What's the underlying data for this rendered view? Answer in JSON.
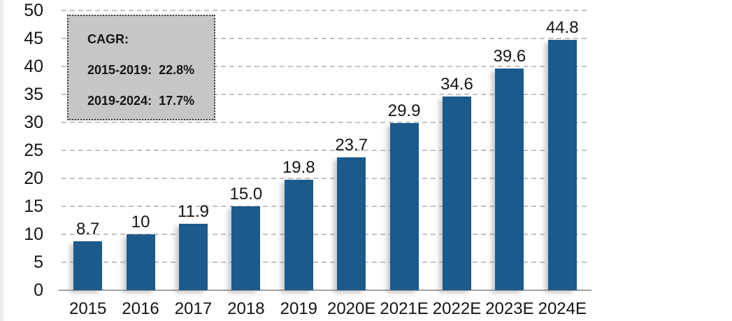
{
  "chart_data": {
    "type": "bar",
    "title": "",
    "categories": [
      "2015",
      "2016",
      "2017",
      "2018",
      "2019",
      "2020E",
      "2021E",
      "2022E",
      "2023E",
      "2024E"
    ],
    "values": [
      8.7,
      10,
      11.9,
      15.0,
      19.8,
      23.7,
      29.9,
      34.6,
      39.6,
      44.8
    ],
    "value_labels": [
      "8.7",
      "10",
      "11.9",
      "15.0",
      "19.8",
      "23.7",
      "29.9",
      "34.6",
      "39.6",
      "44.8"
    ],
    "xlabel": "",
    "ylabel": "",
    "ylim": [
      0,
      50
    ],
    "yticks": [
      0,
      5,
      10,
      15,
      20,
      25,
      30,
      35,
      40,
      45,
      50
    ],
    "grid": "horizontal-dashed",
    "legend_position": "none",
    "annotation": {
      "title": "CAGR:",
      "lines": [
        "2015-2019:  22.8%",
        "2019-2024:  17.7%"
      ]
    }
  },
  "colors": {
    "bar": "#1C5A8C",
    "gridline": "#c2c2c2",
    "axis_line": "#a3a3a3",
    "text": "#151515",
    "annotation_fill": "#c6c6c6",
    "annotation_border": "#3f3f3f"
  }
}
